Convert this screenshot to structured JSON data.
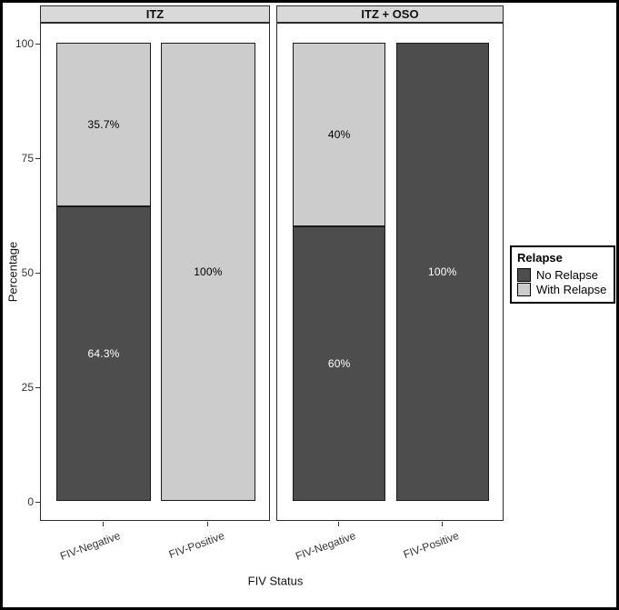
{
  "chart_data": {
    "type": "bar",
    "stacked": true,
    "orientation": "vertical",
    "title": "",
    "xlabel": "FIV Status",
    "ylabel": "Percentage",
    "ylim": [
      0,
      100
    ],
    "grid": false,
    "panel_background": "#ffffff",
    "strip_background": "#d9d9d9",
    "yticks": [
      {
        "value": 0,
        "label": "0"
      },
      {
        "value": 25,
        "label": "25"
      },
      {
        "value": 50,
        "label": "50"
      },
      {
        "value": 75,
        "label": "75"
      },
      {
        "value": 100,
        "label": "100"
      }
    ],
    "categories": [
      "FIV-Negative",
      "FIV-Positive"
    ],
    "series_colors": {
      "No Relapse": {
        "fill": "#4d4d4d",
        "text": "#ffffff"
      },
      "With Relapse": {
        "fill": "#cccccc",
        "text": "#000000"
      }
    },
    "facets": [
      {
        "label": "ITZ",
        "bars": [
          {
            "category": "FIV-Negative",
            "segments": [
              {
                "series": "No Relapse",
                "value": 64.3,
                "label": "64.3%"
              },
              {
                "series": "With Relapse",
                "value": 35.7,
                "label": "35.7%"
              }
            ]
          },
          {
            "category": "FIV-Positive",
            "segments": [
              {
                "series": "With Relapse",
                "value": 100,
                "label": "100%"
              }
            ]
          }
        ]
      },
      {
        "label": "ITZ + OSO",
        "bars": [
          {
            "category": "FIV-Negative",
            "segments": [
              {
                "series": "No Relapse",
                "value": 60,
                "label": "60%"
              },
              {
                "series": "With Relapse",
                "value": 40,
                "label": "40%"
              }
            ]
          },
          {
            "category": "FIV-Positive",
            "segments": [
              {
                "series": "No Relapse",
                "value": 100,
                "label": "100%"
              }
            ]
          }
        ]
      }
    ],
    "legend": {
      "title": "Relapse",
      "position": "right",
      "entries": [
        {
          "label": "No Relapse",
          "fill": "#4d4d4d"
        },
        {
          "label": "With Relapse",
          "fill": "#cccccc"
        }
      ]
    }
  }
}
